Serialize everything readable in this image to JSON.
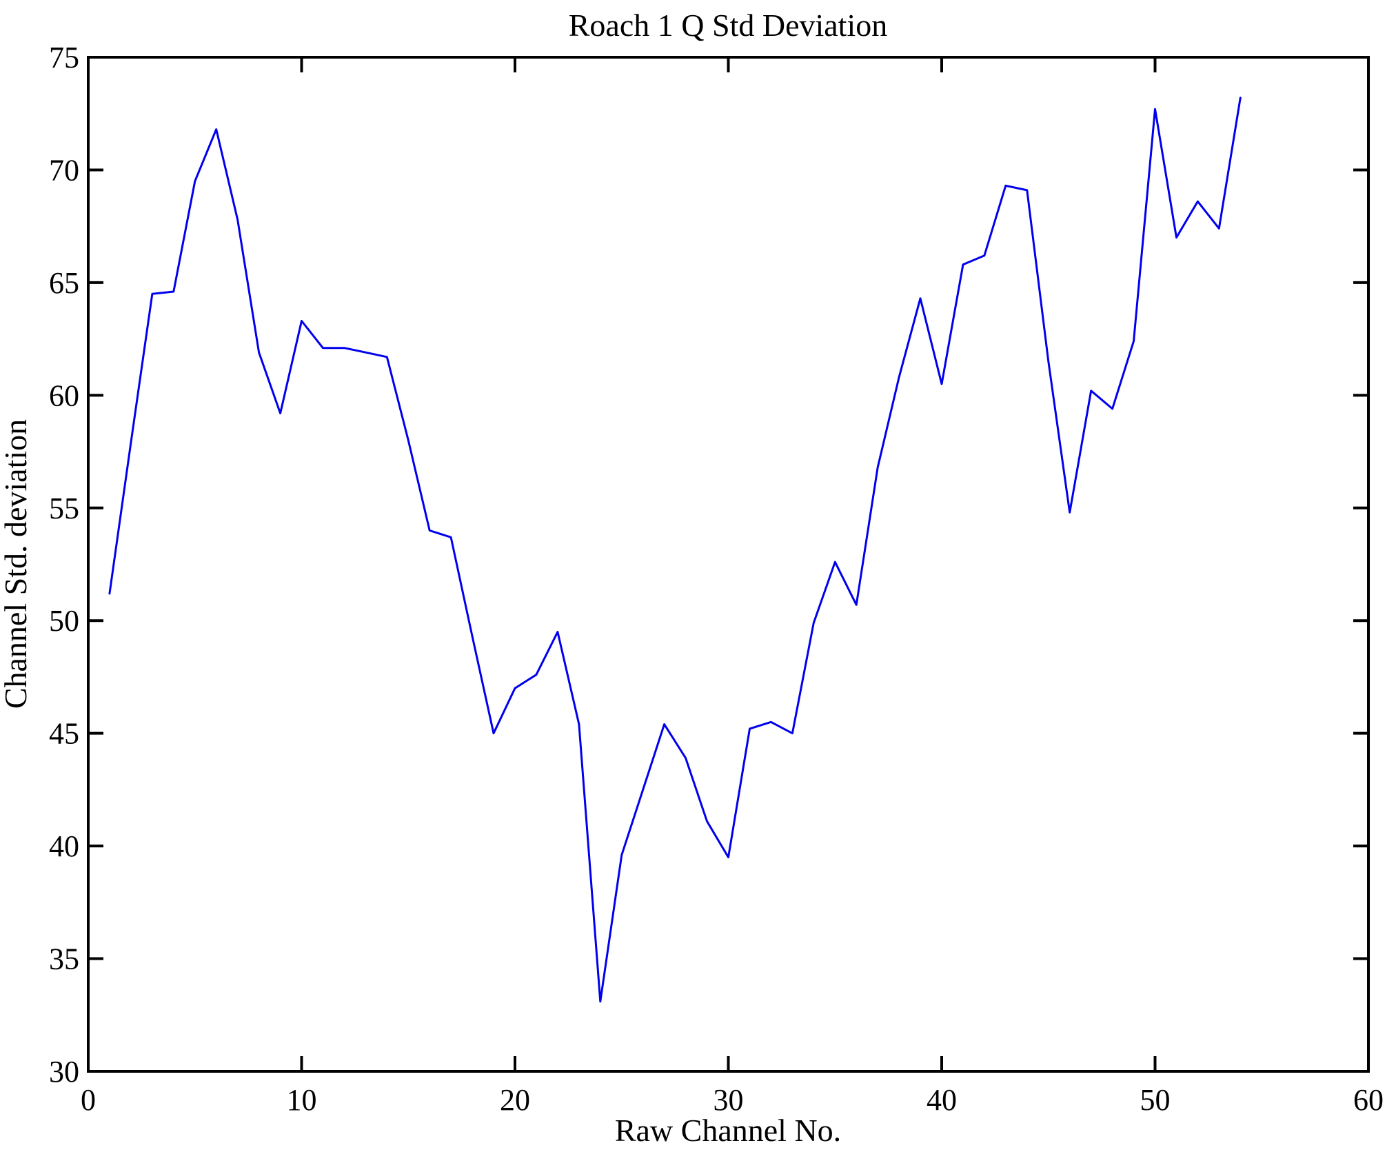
{
  "chart_data": {
    "type": "line",
    "title": "Roach 1 Q Std Deviation",
    "xlabel": "Raw Channel No.",
    "ylabel": "Channel Std. deviation",
    "xlim": [
      0,
      60
    ],
    "ylim": [
      30,
      75
    ],
    "x_ticks": [
      0,
      10,
      20,
      30,
      40,
      50,
      60
    ],
    "y_ticks": [
      30,
      35,
      40,
      45,
      50,
      55,
      60,
      65,
      70,
      75
    ],
    "grid": false,
    "legend": "none",
    "line_color": "#0000ee",
    "axis_color": "#000000",
    "series_name": "Channel Std. deviation",
    "x": [
      1,
      2,
      3,
      4,
      5,
      6,
      7,
      8,
      9,
      10,
      11,
      12,
      13,
      14,
      15,
      16,
      17,
      18,
      19,
      20,
      21,
      22,
      23,
      24,
      25,
      26,
      27,
      28,
      29,
      30,
      31,
      32,
      33,
      34,
      35,
      36,
      37,
      38,
      39,
      40,
      41,
      42,
      43,
      44,
      45,
      46,
      47,
      48,
      49,
      50,
      51,
      52,
      53,
      54
    ],
    "y": [
      51.2,
      57.9,
      64.5,
      64.6,
      69.5,
      71.8,
      67.8,
      61.9,
      59.2,
      63.3,
      62.1,
      62.1,
      61.9,
      61.7,
      58.0,
      54.0,
      53.7,
      49.3,
      45.0,
      47.0,
      47.6,
      49.5,
      45.4,
      33.1,
      39.6,
      42.5,
      45.4,
      43.9,
      41.1,
      39.5,
      45.2,
      45.5,
      45.0,
      49.9,
      52.6,
      50.7,
      56.8,
      60.8,
      64.3,
      60.5,
      65.8,
      66.2,
      69.3,
      69.1,
      61.5,
      54.8,
      60.2,
      59.4,
      62.4,
      72.7,
      67.0,
      68.6,
      67.4,
      73.2
    ]
  }
}
